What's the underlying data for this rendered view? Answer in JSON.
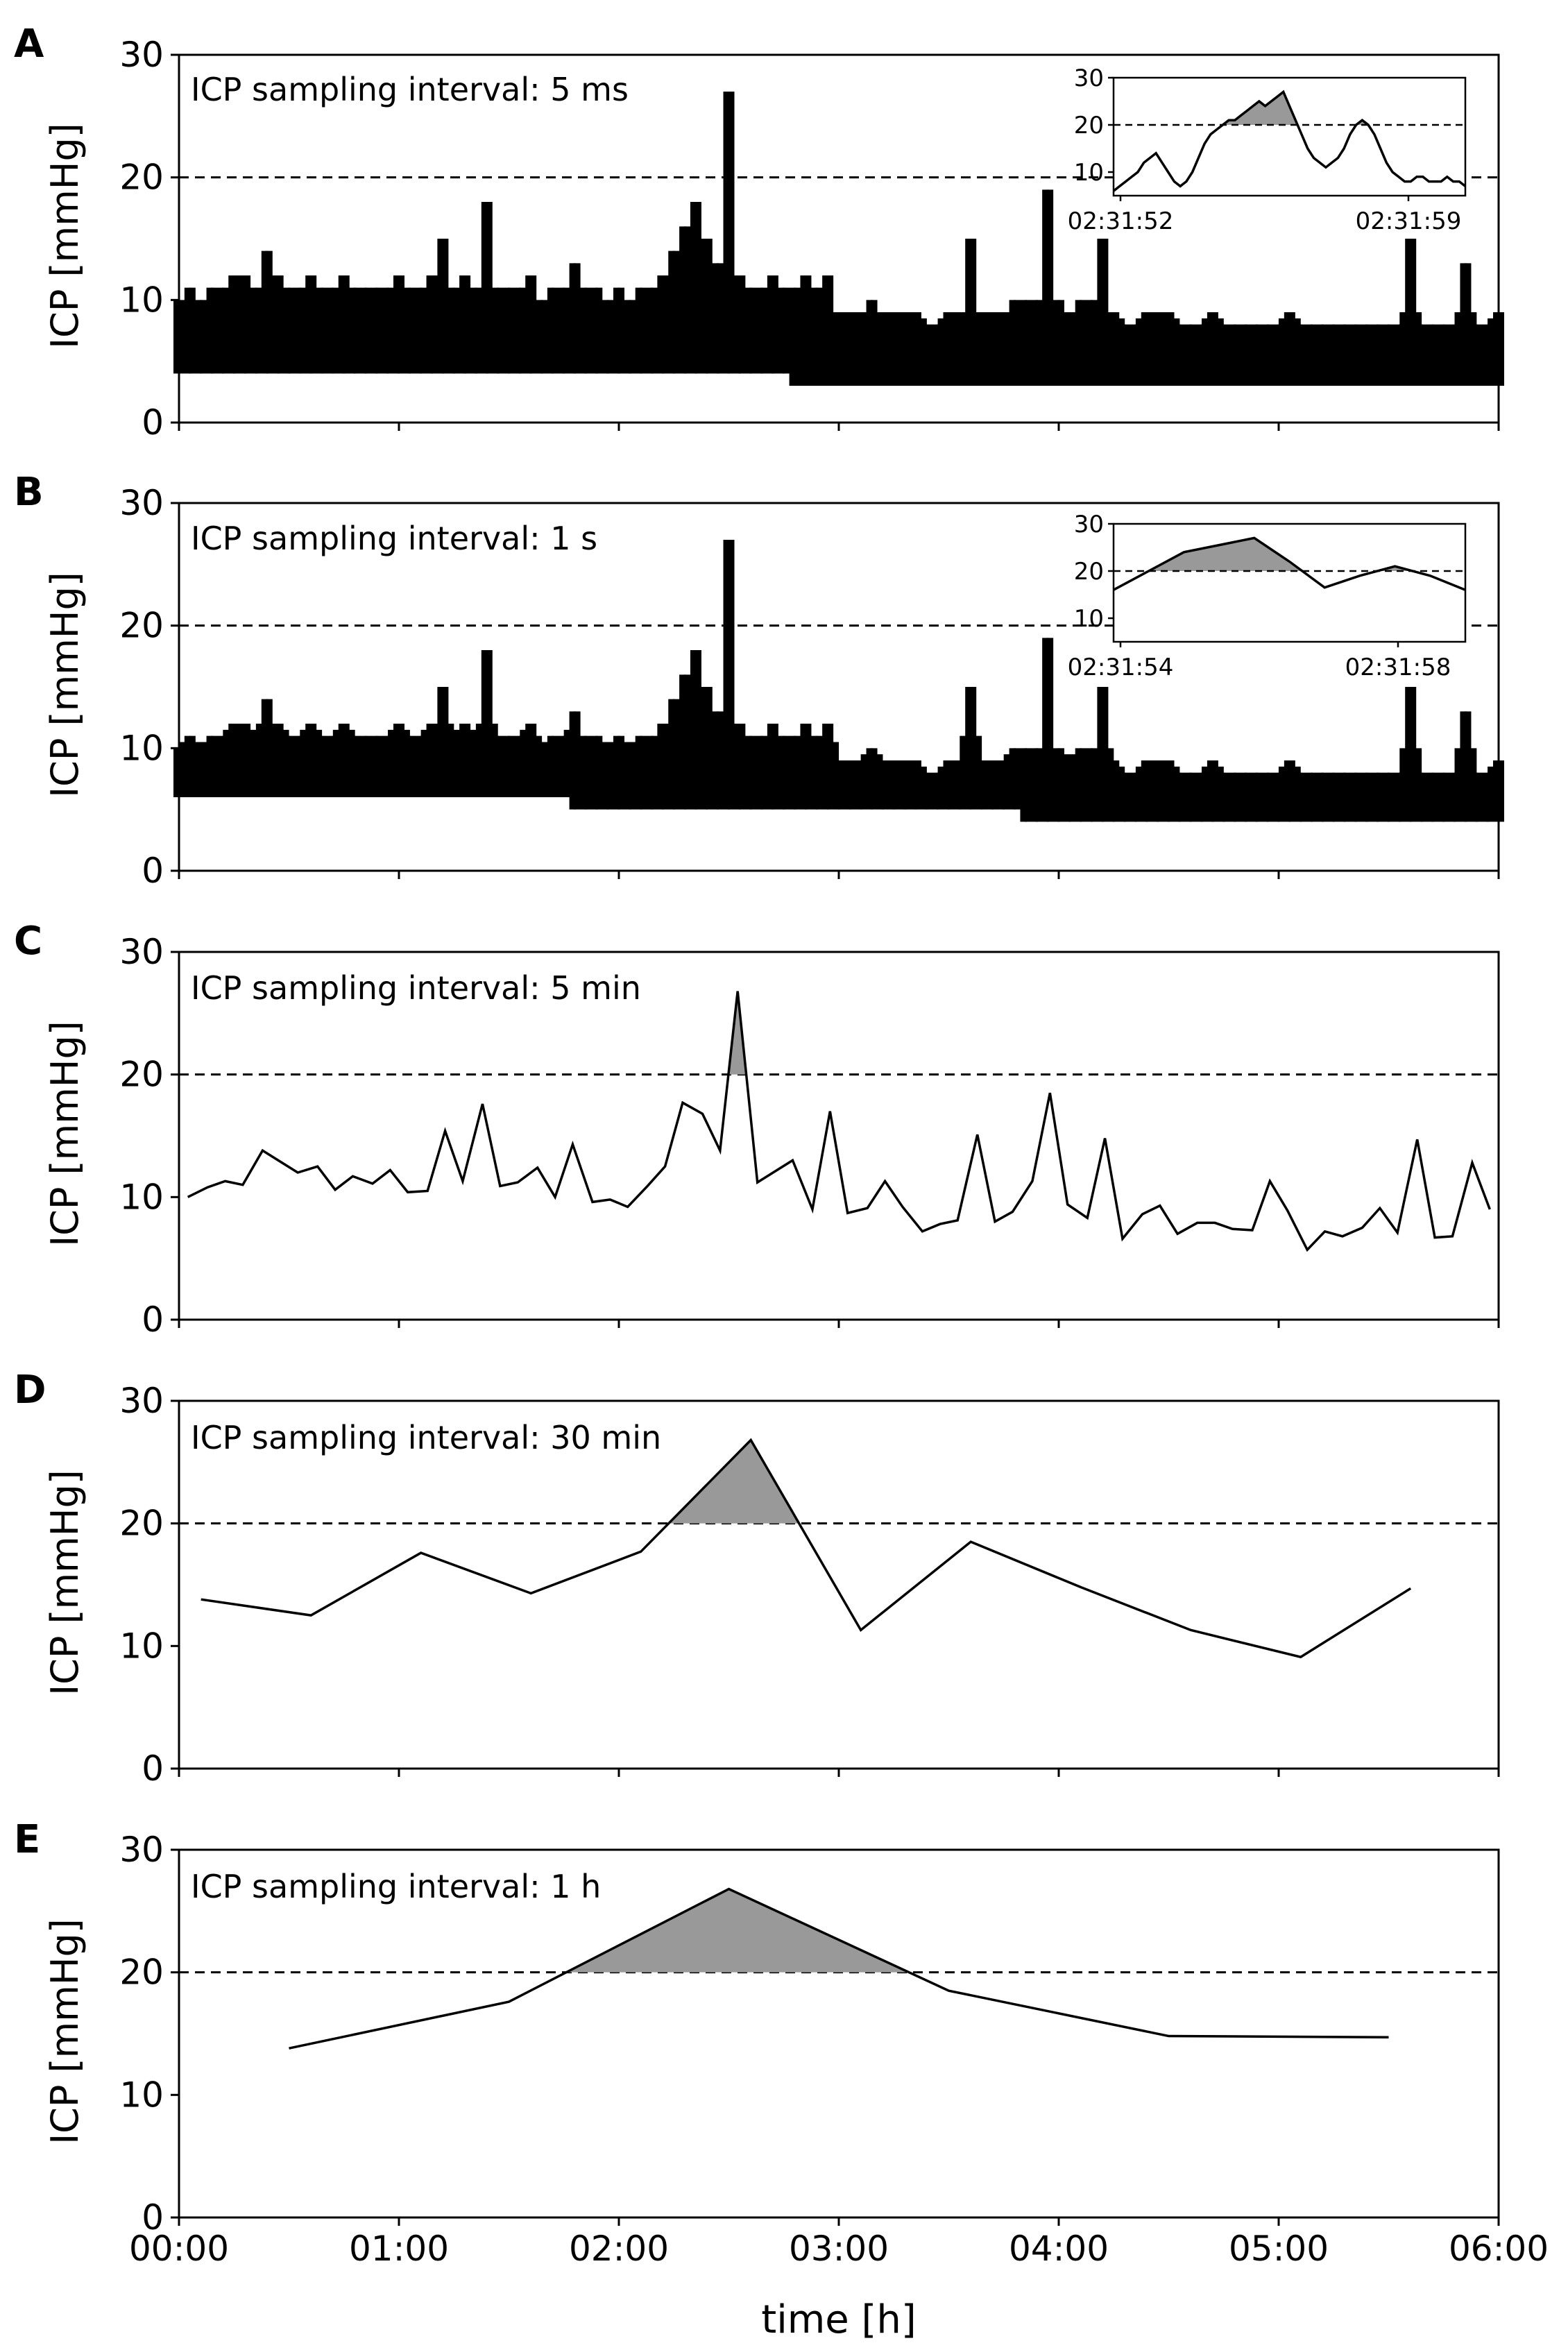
{
  "chart_data": [
    {
      "panel": "A",
      "type": "line",
      "annotation": "ICP sampling interval: 5 ms",
      "ylabel": "ICP [mmHg]",
      "xlabel": "",
      "xlim_hours": [
        0,
        6
      ],
      "ylim": [
        0,
        30
      ],
      "yticks": [
        "0",
        "10",
        "20",
        "30"
      ],
      "threshold": 20,
      "series": [
        {
          "name": "ICP",
          "x": [
            0.0,
            0.05,
            0.1,
            0.15,
            0.2,
            0.25,
            0.3,
            0.35,
            0.4,
            0.45,
            0.5,
            0.55,
            0.6,
            0.65,
            0.7,
            0.75,
            0.8,
            0.85,
            0.9,
            0.95,
            1.0,
            1.05,
            1.1,
            1.15,
            1.2,
            1.25,
            1.3,
            1.35,
            1.4,
            1.45,
            1.5,
            1.55,
            1.6,
            1.65,
            1.7,
            1.75,
            1.8,
            1.85,
            1.9,
            1.95,
            2.0,
            2.05,
            2.1,
            2.15,
            2.2,
            2.25,
            2.3,
            2.35,
            2.4,
            2.45,
            2.5,
            2.55,
            2.6,
            2.65,
            2.7,
            2.75,
            2.8,
            2.85,
            2.9,
            2.95,
            3.0,
            3.05,
            3.1,
            3.15,
            3.2,
            3.25,
            3.3,
            3.35,
            3.4,
            3.45,
            3.5,
            3.55,
            3.6,
            3.65,
            3.7,
            3.75,
            3.8,
            3.85,
            3.9,
            3.95,
            4.0,
            4.05,
            4.1,
            4.15,
            4.2,
            4.25,
            4.3,
            4.35,
            4.4,
            4.45,
            4.5,
            4.55,
            4.6,
            4.65,
            4.7,
            4.75,
            4.8,
            4.85,
            4.9,
            4.95,
            5.0,
            5.05,
            5.1,
            5.15,
            5.2,
            5.25,
            5.3,
            5.35,
            5.4,
            5.45,
            5.5,
            5.55,
            5.6,
            5.65,
            5.7,
            5.75,
            5.8,
            5.85,
            5.9,
            5.95,
            6.0
          ],
          "lo": [
            4,
            4,
            4,
            4,
            4,
            4,
            4,
            4,
            4,
            4,
            4,
            4,
            4,
            4,
            4,
            4,
            4,
            4,
            4,
            4,
            4,
            4,
            4,
            4,
            4,
            4,
            4,
            4,
            4,
            4,
            4,
            4,
            4,
            4,
            4,
            4,
            4,
            4,
            4,
            4,
            4,
            4,
            4,
            4,
            4,
            4,
            4,
            4,
            4,
            4,
            4,
            4,
            4,
            4,
            4,
            4,
            3,
            3,
            3,
            3,
            3,
            3,
            3,
            3,
            3,
            3,
            3,
            3,
            3,
            3,
            3,
            3,
            3,
            3,
            3,
            3,
            3,
            3,
            3,
            3,
            3,
            3,
            3,
            3,
            3,
            3,
            3,
            3,
            3,
            3,
            3,
            3,
            3,
            3,
            3,
            3,
            3,
            3,
            3,
            3,
            3,
            3,
            3,
            3,
            3,
            3,
            3,
            3,
            3,
            3,
            3,
            3,
            3,
            3,
            3,
            3,
            3,
            3,
            3,
            3,
            3
          ],
          "hi": [
            10,
            11,
            10,
            11,
            11,
            12,
            12,
            11,
            14,
            12,
            11,
            11,
            12,
            11,
            11,
            12,
            11,
            11,
            11,
            11,
            12,
            11,
            11,
            12,
            15,
            11,
            12,
            11,
            18,
            11,
            11,
            11,
            12,
            10,
            11,
            11,
            13,
            11,
            11,
            10,
            11,
            10,
            11,
            11,
            12,
            14,
            16,
            18,
            15,
            13,
            27,
            12,
            11,
            11,
            12,
            11,
            11,
            12,
            11,
            12,
            9,
            9,
            9,
            10,
            9,
            9,
            9,
            9,
            8,
            8,
            9,
            9,
            15,
            9,
            9,
            9,
            10,
            10,
            10,
            19,
            10,
            9,
            10,
            10,
            15,
            9,
            8,
            8,
            9,
            9,
            9,
            8,
            8,
            8,
            9,
            8,
            8,
            8,
            8,
            8,
            8,
            9,
            8,
            8,
            8,
            8,
            8,
            8,
            8,
            8,
            8,
            8,
            15,
            8,
            8,
            8,
            8,
            13,
            8,
            8,
            9
          ]
        }
      ],
      "inset": {
        "yticks": [
          "10",
          "20",
          "30"
        ],
        "ylim": [
          5,
          30
        ],
        "xtick_labels": [
          "02:31:52",
          "02:31:59"
        ],
        "values": [
          6,
          7,
          8,
          9,
          10,
          12,
          13,
          14,
          12,
          10,
          8,
          7,
          8,
          10,
          13,
          16,
          18,
          19,
          20,
          21,
          21,
          22,
          23,
          24,
          25,
          24,
          25,
          26,
          27,
          24,
          21,
          18,
          15,
          13,
          12,
          11,
          12,
          13,
          15,
          18,
          20,
          21,
          20,
          18,
          15,
          12,
          10,
          9,
          8,
          8,
          9,
          9,
          8,
          8,
          8,
          9,
          8,
          8,
          7
        ],
        "threshold": 20
      }
    },
    {
      "panel": "B",
      "type": "line",
      "annotation": "ICP sampling interval: 1 s",
      "ylabel": "ICP [mmHg]",
      "xlabel": "",
      "xlim_hours": [
        0,
        6
      ],
      "ylim": [
        0,
        30
      ],
      "yticks": [
        "0",
        "10",
        "20",
        "30"
      ],
      "threshold": 20,
      "series": [
        {
          "name": "ICP",
          "x": [
            0.0,
            0.05,
            0.1,
            0.15,
            0.2,
            0.25,
            0.3,
            0.35,
            0.4,
            0.45,
            0.5,
            0.55,
            0.6,
            0.65,
            0.7,
            0.75,
            0.8,
            0.85,
            0.9,
            0.95,
            1.0,
            1.05,
            1.1,
            1.15,
            1.2,
            1.25,
            1.3,
            1.35,
            1.4,
            1.45,
            1.5,
            1.55,
            1.6,
            1.65,
            1.7,
            1.75,
            1.8,
            1.85,
            1.9,
            1.95,
            2.0,
            2.05,
            2.1,
            2.15,
            2.2,
            2.25,
            2.3,
            2.35,
            2.4,
            2.45,
            2.5,
            2.55,
            2.6,
            2.65,
            2.7,
            2.75,
            2.8,
            2.85,
            2.9,
            2.95,
            3.0,
            3.05,
            3.1,
            3.15,
            3.2,
            3.25,
            3.3,
            3.35,
            3.4,
            3.45,
            3.5,
            3.55,
            3.6,
            3.65,
            3.7,
            3.75,
            3.8,
            3.85,
            3.9,
            3.95,
            4.0,
            4.05,
            4.1,
            4.15,
            4.2,
            4.25,
            4.3,
            4.35,
            4.4,
            4.45,
            4.5,
            4.55,
            4.6,
            4.65,
            4.7,
            4.75,
            4.8,
            4.85,
            4.9,
            4.95,
            5.0,
            5.05,
            5.1,
            5.15,
            5.2,
            5.25,
            5.3,
            5.35,
            5.4,
            5.45,
            5.5,
            5.55,
            5.6,
            5.65,
            5.7,
            5.75,
            5.8,
            5.85,
            5.9,
            5.95,
            6.0
          ],
          "lo": [
            6,
            6,
            6,
            6,
            6,
            6,
            6,
            6,
            6,
            6,
            6,
            6,
            6,
            6,
            6,
            6,
            6,
            6,
            6,
            6,
            6,
            6,
            6,
            6,
            6,
            6,
            6,
            6,
            6,
            6,
            6,
            6,
            6,
            6,
            6,
            6,
            5,
            5,
            5,
            5,
            5,
            5,
            5,
            5,
            5,
            5,
            5,
            5,
            5,
            5,
            5,
            5,
            5,
            5,
            5,
            5,
            5,
            5,
            5,
            5,
            5,
            5,
            5,
            5,
            5,
            5,
            5,
            5,
            5,
            5,
            5,
            5,
            5,
            5,
            5,
            5,
            5,
            4,
            4,
            4,
            4,
            4,
            4,
            4,
            4,
            4,
            4,
            4,
            4,
            4,
            4,
            4,
            4,
            4,
            4,
            4,
            4,
            4,
            4,
            4,
            4,
            4,
            4,
            4,
            4,
            4,
            4,
            4,
            4,
            4,
            4,
            4,
            4,
            4,
            4,
            4,
            4,
            4,
            4,
            4,
            4
          ],
          "hi": [
            10,
            11,
            10,
            11,
            11,
            12,
            12,
            11,
            14,
            12,
            11,
            11,
            12,
            11,
            11,
            12,
            11,
            11,
            11,
            11,
            12,
            11,
            11,
            12,
            15,
            11,
            12,
            11,
            18,
            11,
            11,
            11,
            12,
            10,
            11,
            11,
            13,
            11,
            11,
            10,
            11,
            10,
            11,
            11,
            12,
            14,
            16,
            18,
            15,
            13,
            27,
            12,
            11,
            11,
            12,
            11,
            11,
            12,
            11,
            12,
            9,
            9,
            9,
            10,
            9,
            9,
            9,
            9,
            8,
            8,
            9,
            9,
            15,
            9,
            9,
            9,
            10,
            10,
            10,
            19,
            10,
            9,
            10,
            10,
            15,
            9,
            8,
            8,
            9,
            9,
            9,
            8,
            8,
            8,
            9,
            8,
            8,
            8,
            8,
            8,
            8,
            9,
            8,
            8,
            8,
            8,
            8,
            8,
            8,
            8,
            8,
            8,
            15,
            8,
            8,
            8,
            8,
            13,
            8,
            8,
            9
          ]
        }
      ],
      "inset": {
        "yticks": [
          "10",
          "20",
          "30"
        ],
        "ylim": [
          5,
          30
        ],
        "xtick_labels": [
          "02:31:54",
          "02:31:58"
        ],
        "values": [
          16,
          20,
          24,
          25.5,
          27,
          22,
          16.5,
          19,
          21,
          19,
          16
        ],
        "threshold": 20
      }
    },
    {
      "panel": "C",
      "type": "line",
      "annotation": "ICP sampling interval: 5 min",
      "ylabel": "ICP [mmHg]",
      "xlabel": "",
      "xlim_hours": [
        0,
        6
      ],
      "ylim": [
        0,
        30
      ],
      "yticks": [
        "0",
        "10",
        "20",
        "30"
      ],
      "threshold": 20,
      "series": [
        {
          "name": "ICP",
          "x": [
            0.04,
            0.13,
            0.21,
            0.29,
            0.38,
            0.46,
            0.54,
            0.63,
            0.71,
            0.79,
            0.88,
            0.96,
            1.04,
            1.13,
            1.21,
            1.29,
            1.38,
            1.46,
            1.54,
            1.63,
            1.71,
            1.79,
            1.88,
            1.96,
            2.04,
            2.13,
            2.21,
            2.29,
            2.38,
            2.46,
            2.54,
            2.63,
            2.71,
            2.79,
            2.88,
            2.96,
            3.04,
            3.13,
            3.21,
            3.29,
            3.38,
            3.46,
            3.54,
            3.63,
            3.71,
            3.79,
            3.88,
            3.96,
            4.04,
            4.13,
            4.21,
            4.29,
            4.38,
            4.46,
            4.54,
            4.63,
            4.71,
            4.79,
            4.88,
            4.96,
            5.04,
            5.13,
            5.21,
            5.29,
            5.38,
            5.46,
            5.54,
            5.63,
            5.71,
            5.79,
            5.88,
            5.96
          ],
          "values": [
            10,
            10.8,
            11.3,
            11,
            13.8,
            12.9,
            12,
            12.5,
            10.6,
            11.7,
            11.1,
            12.2,
            10.4,
            10.5,
            15.4,
            11.3,
            17.6,
            10.9,
            11.2,
            12.4,
            10,
            14.3,
            9.6,
            9.8,
            9.2,
            10.9,
            12.5,
            17.7,
            16.8,
            13.8,
            26.8,
            11.2,
            12.1,
            13,
            9,
            17,
            8.7,
            9.1,
            11.3,
            9.2,
            7.2,
            7.8,
            8.1,
            15.1,
            8,
            8.8,
            11.3,
            18.5,
            9.4,
            8.3,
            14.8,
            6.6,
            8.6,
            9.3,
            7,
            7.9,
            7.9,
            7.4,
            7.3,
            11.3,
            8.9,
            5.7,
            7.2,
            6.8,
            7.5,
            9.1,
            7.1,
            14.7,
            6.7,
            6.8,
            12.8,
            9
          ]
        }
      ]
    },
    {
      "panel": "D",
      "type": "line",
      "annotation": "ICP sampling interval: 30 min",
      "ylabel": "ICP [mmHg]",
      "xlabel": "",
      "xlim_hours": [
        0,
        6
      ],
      "ylim": [
        0,
        30
      ],
      "yticks": [
        "0",
        "10",
        "20",
        "30"
      ],
      "threshold": 20,
      "series": [
        {
          "name": "ICP",
          "x": [
            0.1,
            0.6,
            1.1,
            1.6,
            2.1,
            2.6,
            3.1,
            3.6,
            4.1,
            4.6,
            5.1,
            5.6
          ],
          "values": [
            13.8,
            12.5,
            17.6,
            14.3,
            17.7,
            26.8,
            11.3,
            18.5,
            14.8,
            11.3,
            9.1,
            14.7
          ]
        }
      ]
    },
    {
      "panel": "E",
      "type": "line",
      "annotation": "ICP sampling interval: 1 h",
      "ylabel": "ICP [mmHg]",
      "xlabel": "time [h]",
      "xlim_hours": [
        0,
        6
      ],
      "ylim": [
        0,
        30
      ],
      "yticks": [
        "0",
        "10",
        "20",
        "30"
      ],
      "xtick_labels": [
        "00:00",
        "01:00",
        "02:00",
        "03:00",
        "04:00",
        "05:00",
        "06:00"
      ],
      "threshold": 20,
      "series": [
        {
          "name": "ICP",
          "x": [
            0.5,
            1.5,
            2.5,
            3.5,
            4.5,
            5.5
          ],
          "values": [
            13.8,
            17.6,
            26.8,
            18.5,
            14.8,
            14.7
          ]
        }
      ]
    }
  ],
  "colors": {
    "line": "#000000",
    "fill": "#999999",
    "axis": "#000000",
    "background": "#ffffff"
  }
}
